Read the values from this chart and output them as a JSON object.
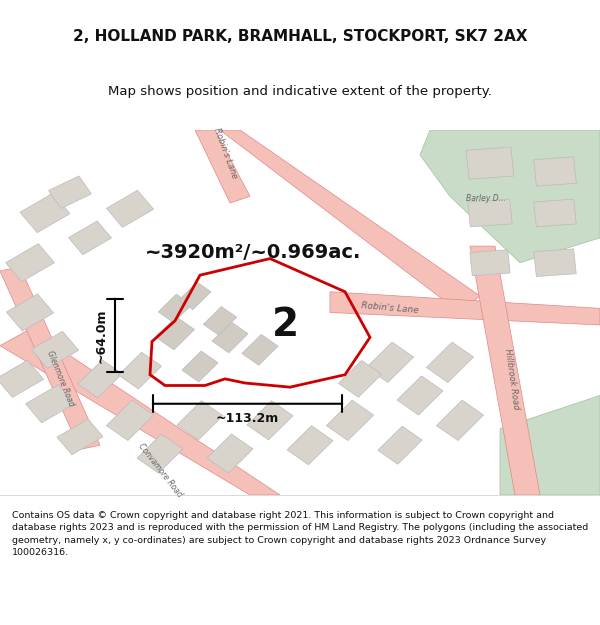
{
  "title_line1": "2, HOLLAND PARK, BRAMHALL, STOCKPORT, SK7 2AX",
  "title_line2": "Map shows position and indicative extent of the property.",
  "area_label": "~3920m²/~0.969ac.",
  "plot_number": "2",
  "width_label": "~113.2m",
  "height_label": "~64.0m",
  "footer_text": "Contains OS data © Crown copyright and database right 2021. This information is subject to Crown copyright and database rights 2023 and is reproduced with the permission of HM Land Registry. The polygons (including the associated geometry, namely x, y co-ordinates) are subject to Crown copyright and database rights 2023 Ordnance Survey 100026316.",
  "bg_color": "#f0ede8",
  "map_bg": "#f0ede8",
  "road_color": "#f5c0b8",
  "road_edge_color": "#e08888",
  "plot_color": "#cc0000",
  "plot_fill": "none",
  "building_color": "#d8d4cc",
  "green_area": "#c8dcc8",
  "footer_bg": "#ffffff",
  "title_bg": "#ffffff"
}
